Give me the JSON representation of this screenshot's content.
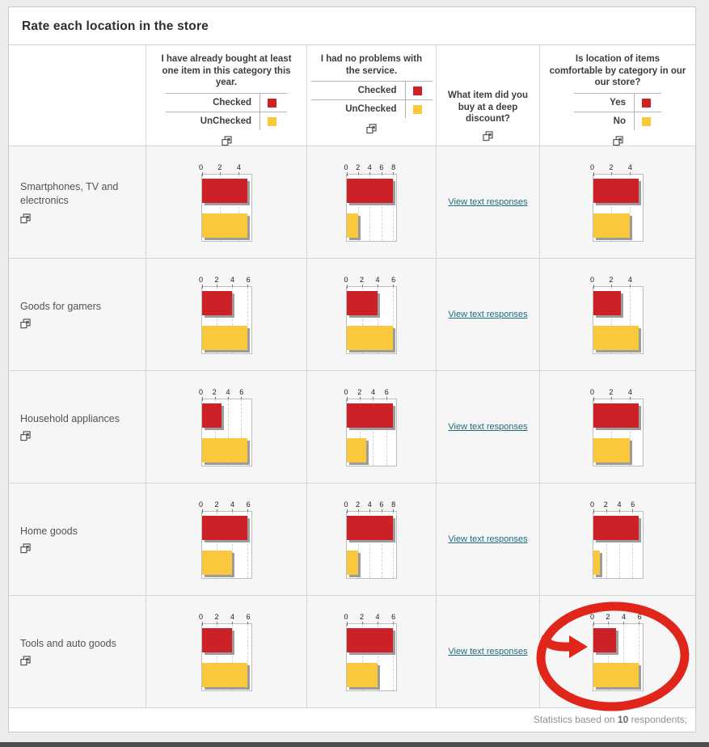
{
  "page": {
    "title": "Rate each location in the store"
  },
  "colors": {
    "checked": "#cb2127",
    "unchecked": "#fac83d",
    "annotation": "#e0251a",
    "link": "#1d6b7c"
  },
  "columns": [
    {
      "question": "I have already bought at least one item in this category this year.",
      "legend": [
        {
          "label": "Checked"
        },
        {
          "label": "UnChecked"
        }
      ],
      "icon": "popout-icon"
    },
    {
      "question": "I had no problems with the service.",
      "legend": [
        {
          "label": "Checked"
        },
        {
          "label": "UnChecked"
        }
      ],
      "icon": "popout-icon"
    },
    {
      "question": "What item did you buy at a deep discount?",
      "link_text": "View text responses",
      "icon": "popout-icon"
    },
    {
      "question": "Is location of items comfortable by category in our our store?",
      "legend": [
        {
          "label": "Yes"
        },
        {
          "label": "No"
        }
      ],
      "icon": "popout-icon"
    }
  ],
  "rows": [
    {
      "label": "Smartphones, TV and electronics",
      "charts": {
        "q1": {
          "ticks": [
            0,
            2,
            4
          ],
          "red": 5,
          "yellow": 5
        },
        "q2": {
          "ticks": [
            0,
            2,
            4,
            6,
            8
          ],
          "red": 8,
          "yellow": 2
        },
        "q4": {
          "ticks": [
            0,
            2,
            4
          ],
          "red": 5,
          "yellow": 4
        }
      }
    },
    {
      "label": "Goods for gamers",
      "charts": {
        "q1": {
          "ticks": [
            0,
            2,
            4,
            6
          ],
          "red": 4,
          "yellow": 6
        },
        "q2": {
          "ticks": [
            0,
            2,
            4,
            6
          ],
          "red": 4,
          "yellow": 6
        },
        "q4": {
          "ticks": [
            0,
            2,
            4
          ],
          "red": 3,
          "yellow": 5
        }
      }
    },
    {
      "label": "Household appliances",
      "charts": {
        "q1": {
          "ticks": [
            0,
            2,
            4,
            6
          ],
          "red": 3,
          "yellow": 7
        },
        "q2": {
          "ticks": [
            0,
            2,
            4,
            6
          ],
          "red": 7,
          "yellow": 3
        },
        "q4": {
          "ticks": [
            0,
            2,
            4
          ],
          "red": 5,
          "yellow": 4
        }
      }
    },
    {
      "label": "Home goods",
      "charts": {
        "q1": {
          "ticks": [
            0,
            2,
            4,
            6
          ],
          "red": 6,
          "yellow": 4
        },
        "q2": {
          "ticks": [
            0,
            2,
            4,
            6,
            8
          ],
          "red": 8,
          "yellow": 2
        },
        "q4": {
          "ticks": [
            0,
            2,
            4,
            6
          ],
          "red": 7,
          "yellow": 1
        }
      }
    },
    {
      "label": "Tools and auto goods",
      "charts": {
        "q1": {
          "ticks": [
            0,
            2,
            4,
            6
          ],
          "red": 4,
          "yellow": 6
        },
        "q2": {
          "ticks": [
            0,
            2,
            4,
            6
          ],
          "red": 6,
          "yellow": 4
        },
        "q4": {
          "ticks": [
            0,
            2,
            4,
            6
          ],
          "red": 3,
          "yellow": 6
        }
      }
    }
  ],
  "footer": {
    "prefix": "Statistics based on ",
    "count": "10",
    "suffix": " respondents;"
  },
  "annotation": {
    "shape": "hand-drawn circle and arrow"
  }
}
